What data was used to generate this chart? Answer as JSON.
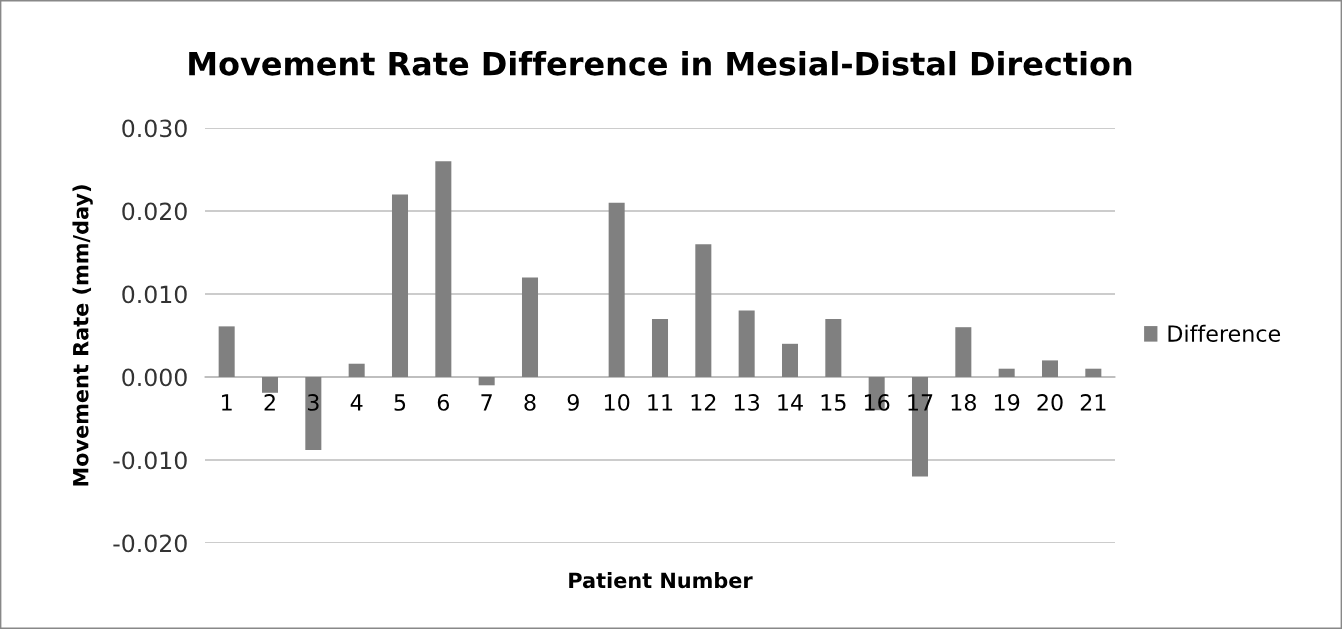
{
  "chart_data": {
    "type": "bar",
    "title": "Movement Rate Difference in Mesial-Distal Direction",
    "xlabel": "Patient Number",
    "ylabel": "Movement Rate (mm/day)",
    "categories": [
      "1",
      "2",
      "3",
      "4",
      "5",
      "6",
      "7",
      "8",
      "9",
      "10",
      "11",
      "12",
      "13",
      "14",
      "15",
      "16",
      "17",
      "18",
      "19",
      "20",
      "21"
    ],
    "series": [
      {
        "name": "Difference",
        "color": "#808080",
        "values": [
          0.0061,
          -0.0019,
          -0.0088,
          0.0016,
          0.022,
          0.026,
          -0.001,
          0.012,
          0,
          0.021,
          0.007,
          0.016,
          0.008,
          0.004,
          0.007,
          -0.004,
          -0.012,
          0.006,
          0.001,
          0.002,
          0.001
        ]
      }
    ],
    "ylim": [
      -0.02,
      0.03
    ],
    "yticks": [
      {
        "value": -0.02,
        "label": "-0.020"
      },
      {
        "value": -0.01,
        "label": "-0.010"
      },
      {
        "value": 0,
        "label": "0.000"
      },
      {
        "value": 0.01,
        "label": "0.010"
      },
      {
        "value": 0.02,
        "label": "0.020"
      },
      {
        "value": 0.03,
        "label": "0.030"
      }
    ],
    "grid": "y",
    "legend": "right"
  }
}
